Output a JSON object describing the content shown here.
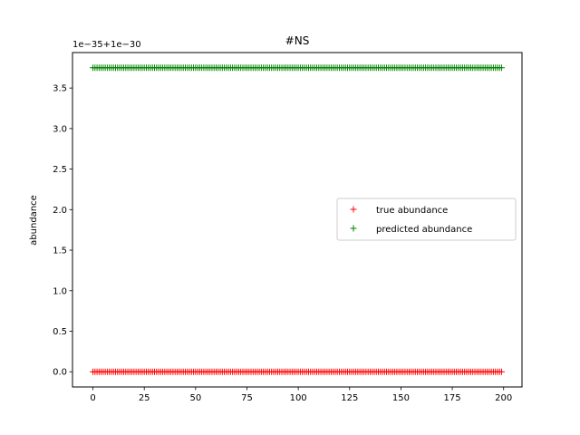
{
  "chart_data": {
    "type": "scatter",
    "title": "#NS",
    "xlabel": "",
    "ylabel": "abundance",
    "y_offset_text": "1e−35+1e−30",
    "xlim": [
      -9.95,
      208.95
    ],
    "ylim": [
      -0.1875,
      3.9375
    ],
    "xticks": [
      0,
      25,
      50,
      75,
      100,
      125,
      150,
      175,
      200
    ],
    "xtick_labels": [
      "0",
      "25",
      "50",
      "75",
      "100",
      "125",
      "150",
      "175",
      "200"
    ],
    "yticks": [
      0.0,
      0.5,
      1.0,
      1.5,
      2.0,
      2.5,
      3.0,
      3.5
    ],
    "ytick_labels": [
      "0.0",
      "0.5",
      "1.0",
      "1.5",
      "2.0",
      "2.5",
      "3.0",
      "3.5"
    ],
    "x_range": [
      0,
      199
    ],
    "grid": false,
    "legend_position": "center-right",
    "marker": "+",
    "series": [
      {
        "name": "true abundance",
        "color": "#ff0000",
        "y_constant": 0.0
      },
      {
        "name": "predicted abundance",
        "color": "#008000",
        "y_constant": 3.75
      }
    ]
  }
}
